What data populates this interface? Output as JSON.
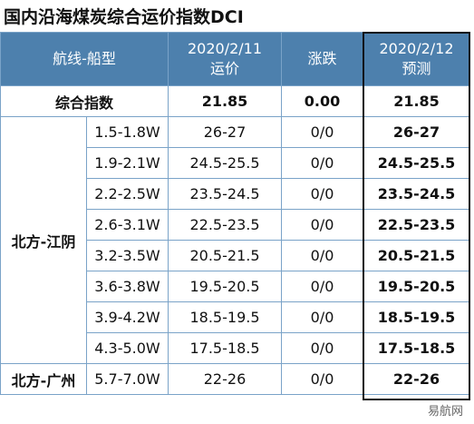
{
  "title": "国内沿海煤炭综合运价指数DCI",
  "table": {
    "header": {
      "route": "航线-船型",
      "price_date": "2020/2/11",
      "price": "运价",
      "change": "涨跌",
      "forecast_date": "2020/2/12",
      "forecast": "预测"
    },
    "composite": {
      "label": "综合指数",
      "price": "21.85",
      "change": "0.00",
      "forecast": "21.85"
    },
    "groups": [
      {
        "route": "北方-江阴",
        "rows": [
          [
            "1.5-1.8W",
            "26-27",
            "0/0",
            "26-27"
          ],
          [
            "1.9-2.1W",
            "24.5-25.5",
            "0/0",
            "24.5-25.5"
          ],
          [
            "2.2-2.5W",
            "23.5-24.5",
            "0/0",
            "23.5-24.5"
          ],
          [
            "2.6-3.1W",
            "22.5-23.5",
            "0/0",
            "22.5-23.5"
          ],
          [
            "3.2-3.5W",
            "20.5-21.5",
            "0/0",
            "20.5-21.5"
          ],
          [
            "3.6-3.8W",
            "19.5-20.5",
            "0/0",
            "19.5-20.5"
          ],
          [
            "3.9-4.2W",
            "18.5-19.5",
            "0/0",
            "18.5-19.5"
          ],
          [
            "4.3-5.0W",
            "17.5-18.5",
            "0/0",
            "17.5-18.5"
          ]
        ]
      },
      {
        "route": "北方-广州",
        "rows": [
          [
            "5.7-7.0W",
            "22-26",
            "0/0",
            "22-26"
          ]
        ]
      }
    ]
  },
  "watermark": "易航网"
}
